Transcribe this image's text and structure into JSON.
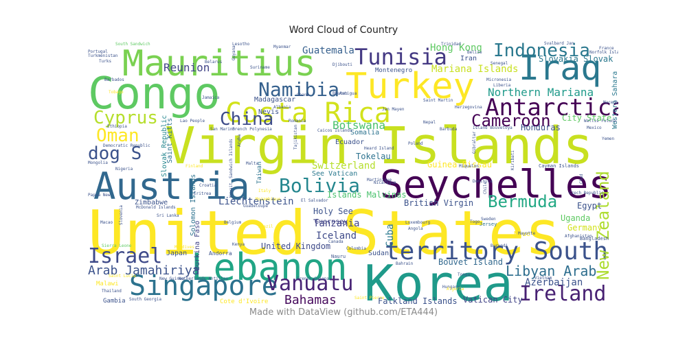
{
  "title": "Word Cloud of Country",
  "footer": "Made with DataView (github.com/ETA444)",
  "chart_data": {
    "type": "wordcloud",
    "title": "Word Cloud of Country",
    "words": [
      {
        "text": "United States",
        "weight": 1.0,
        "color": "#fde725"
      },
      {
        "text": "Virgin Islands",
        "weight": 0.92,
        "color": "#c8e020"
      },
      {
        "text": "Korea",
        "weight": 0.85,
        "color": "#1f9a8a"
      },
      {
        "text": "Congo",
        "weight": 0.8,
        "color": "#5ec962"
      },
      {
        "text": "Lebanon",
        "weight": 0.74,
        "color": "#21a585"
      },
      {
        "text": "Seychelles",
        "weight": 0.72,
        "color": "#440154"
      },
      {
        "text": "Austria",
        "weight": 0.66,
        "color": "#31688e"
      },
      {
        "text": "Mauritius",
        "weight": 0.64,
        "color": "#7ad151"
      },
      {
        "text": "Turkey",
        "weight": 0.62,
        "color": "#fde725"
      },
      {
        "text": "Iraq",
        "weight": 0.58,
        "color": "#2a788e"
      },
      {
        "text": "Costa Rica",
        "weight": 0.55,
        "color": "#d2e21b"
      },
      {
        "text": "Singapore",
        "weight": 0.47,
        "color": "#2c728e"
      },
      {
        "text": "territory South",
        "weight": 0.45,
        "color": "#3b528b"
      },
      {
        "text": "Antarctica",
        "weight": 0.42,
        "color": "#440154"
      },
      {
        "text": "Tunisia",
        "weight": 0.38,
        "color": "#443983"
      },
      {
        "text": "Namibia",
        "weight": 0.36,
        "color": "#35608d"
      },
      {
        "text": "Indonesia",
        "weight": 0.35,
        "color": "#2a788e"
      },
      {
        "text": "Vanuatu",
        "weight": 0.35,
        "color": "#482475"
      },
      {
        "text": "Israel",
        "weight": 0.35,
        "color": "#3e4a89"
      },
      {
        "text": "Ireland",
        "weight": 0.33,
        "color": "#482173"
      },
      {
        "text": "Bolivia",
        "weight": 0.32,
        "color": "#24868e"
      },
      {
        "text": "Cyprus",
        "weight": 0.3,
        "color": "#b5de2b"
      },
      {
        "text": "China",
        "weight": 0.3,
        "color": "#3e4c8a"
      },
      {
        "text": "Oman",
        "weight": 0.3,
        "color": "#fde725"
      },
      {
        "text": "Cameroon",
        "weight": 0.28,
        "color": "#440154"
      },
      {
        "text": "Bermuda",
        "weight": 0.28,
        "color": "#22a884"
      },
      {
        "text": "dog S",
        "weight": 0.28,
        "color": "#3b528b"
      },
      {
        "text": "New Zealand",
        "weight": 0.27,
        "color": "#addc30"
      },
      {
        "text": "Libyan Arab",
        "weight": 0.22,
        "color": "#2e6e8e"
      },
      {
        "text": "Arab Jamahiriya",
        "weight": 0.22,
        "color": "#3b528b"
      },
      {
        "text": "Bahamas",
        "weight": 0.2,
        "color": "#460a5d"
      },
      {
        "text": "Reunion",
        "weight": 0.18,
        "color": "#414487"
      },
      {
        "text": "Guatemala",
        "weight": 0.16,
        "color": "#355f8d"
      },
      {
        "text": "Hong Kong",
        "weight": 0.16,
        "color": "#5ec962"
      },
      {
        "text": "Mariana Islands",
        "weight": 0.16,
        "color": "#c8e020"
      },
      {
        "text": "Northern Mariana",
        "weight": 0.18,
        "color": "#1f9a8a"
      },
      {
        "text": "Slovakia Slovak",
        "weight": 0.14,
        "color": "#2a788e"
      },
      {
        "text": "Botswana",
        "weight": 0.16,
        "color": "#4ac16d"
      },
      {
        "text": "Switzerland",
        "weight": 0.15,
        "color": "#b5de2b"
      },
      {
        "text": "Liechtenstein",
        "weight": 0.14,
        "color": "#3b528b"
      },
      {
        "text": "Tanzania",
        "weight": 0.14,
        "color": "#414487"
      },
      {
        "text": "Azerbaijan",
        "weight": 0.14,
        "color": "#3b528b"
      },
      {
        "text": "Iceland",
        "weight": 0.13,
        "color": "#3e4a89"
      },
      {
        "text": "Tokelau",
        "weight": 0.12,
        "color": "#2c728e"
      },
      {
        "text": "Honduras",
        "weight": 0.12,
        "color": "#3b528b"
      },
      {
        "text": "Uganda",
        "weight": 0.12,
        "color": "#5ec962"
      },
      {
        "text": "Germany",
        "weight": 0.12,
        "color": "#d2e21b"
      },
      {
        "text": "Egypt",
        "weight": 0.12,
        "color": "#3b528b"
      },
      {
        "text": "Cuba",
        "weight": 0.13,
        "color": "#2a788e"
      },
      {
        "text": "United Kingdom",
        "weight": 0.11,
        "color": "#3e4a89"
      },
      {
        "text": "Bouvet Island",
        "weight": 0.11,
        "color": "#31688e"
      },
      {
        "text": "Falkland Islands",
        "weight": 0.1,
        "color": "#3b528b"
      },
      {
        "text": "Vatican City",
        "weight": 0.1,
        "color": "#414487"
      },
      {
        "text": "Guinea Bissau",
        "weight": 0.1,
        "color": "#fde725"
      },
      {
        "text": "Islands Malvinas",
        "weight": 0.11,
        "color": "#4ac16d"
      },
      {
        "text": "British Virgin",
        "weight": 0.11,
        "color": "#3b528b"
      },
      {
        "text": "Holy See",
        "weight": 0.11,
        "color": "#3b528b"
      },
      {
        "text": "Guernsey",
        "weight": 0.09,
        "color": "#414487"
      },
      {
        "text": "Ecuador",
        "weight": 0.1,
        "color": "#3b528b"
      },
      {
        "text": "Somalia",
        "weight": 0.1,
        "color": "#2c728e"
      },
      {
        "text": "See Vatican",
        "weight": 0.1,
        "color": "#2a788e"
      },
      {
        "text": "Saint Kitts",
        "weight": 0.1,
        "color": "#2c728e"
      },
      {
        "text": "Slovak Republic",
        "weight": 0.1,
        "color": "#24868e"
      },
      {
        "text": "Western Sahara",
        "weight": 0.1,
        "color": "#2a788e"
      },
      {
        "text": "City State",
        "weight": 0.1,
        "color": "#5ec962"
      },
      {
        "text": "Madagascar",
        "weight": 0.1,
        "color": "#3b528b"
      },
      {
        "text": "Nevis",
        "weight": 0.1,
        "color": "#3b528b"
      },
      {
        "text": "Sudan",
        "weight": 0.09,
        "color": "#3b528b"
      },
      {
        "text": "Niue",
        "weight": 0.09,
        "color": "#fde725"
      },
      {
        "text": "Japan",
        "weight": 0.09,
        "color": "#3b528b"
      },
      {
        "text": "Zimbabwe",
        "weight": 0.09,
        "color": "#3b528b"
      },
      {
        "text": "Solomon Islands",
        "weight": 0.09,
        "color": "#2c728e"
      },
      {
        "text": "Burkina Faso",
        "weight": 0.09,
        "color": "#414487"
      },
      {
        "text": "Gambia",
        "weight": 0.09,
        "color": "#3b528b"
      },
      {
        "text": "Malawi",
        "weight": 0.09,
        "color": "#fde725"
      },
      {
        "text": "Cote d'Ivoire",
        "weight": 0.09,
        "color": "#fde725"
      },
      {
        "text": "Iran",
        "weight": 0.09,
        "color": "#3b528b"
      },
      {
        "text": "Montenegro",
        "weight": 0.08,
        "color": "#3b528b"
      },
      {
        "text": "Taiwan",
        "weight": 0.08,
        "color": "#2c728e"
      },
      {
        "text": "Andorra",
        "weight": 0.07,
        "color": "#3b528b"
      },
      {
        "text": "Nauru",
        "weight": 0.06,
        "color": "#3b528b"
      },
      {
        "text": "Bangladesh",
        "weight": 0.06,
        "color": "#3b528b"
      },
      {
        "text": "Jersey",
        "weight": 0.06,
        "color": "#2c728e"
      },
      {
        "text": "Croatia",
        "weight": 0.05,
        "color": "#3b528b"
      },
      {
        "text": "Mongolia",
        "weight": 0.05,
        "color": "#3b528b"
      },
      {
        "text": "Turkmenistan",
        "weight": 0.05,
        "color": "#3b528b"
      },
      {
        "text": "Portugal",
        "weight": 0.05,
        "color": "#3b528b"
      },
      {
        "text": "Lesotho",
        "weight": 0.05,
        "color": "#3b528b"
      },
      {
        "text": "Myanmar",
        "weight": 0.05,
        "color": "#3b528b"
      },
      {
        "text": "Belarus",
        "weight": 0.05,
        "color": "#3b528b"
      },
      {
        "text": "Djibouti",
        "weight": 0.05,
        "color": "#3b528b"
      },
      {
        "text": "Bhutan",
        "weight": 0.05,
        "color": "#3b528b"
      },
      {
        "text": "Ghana",
        "weight": 0.05,
        "color": "#3b528b"
      },
      {
        "text": "Albania",
        "weight": 0.05,
        "color": "#3b528b"
      },
      {
        "text": "Barbados",
        "weight": 0.05,
        "color": "#3b528b"
      },
      {
        "text": "Tobago",
        "weight": 0.05,
        "color": "#fde725"
      },
      {
        "text": "Ethiopia",
        "weight": 0.05,
        "color": "#3b528b"
      },
      {
        "text": "Finland",
        "weight": 0.05,
        "color": "#fde725"
      },
      {
        "text": "Italy",
        "weight": 0.05,
        "color": "#fde725"
      },
      {
        "text": "Nigeria",
        "weight": 0.05,
        "color": "#3b528b"
      },
      {
        "text": "Thailand",
        "weight": 0.05,
        "color": "#3b528b"
      },
      {
        "text": "Macao",
        "weight": 0.05,
        "color": "#3b528b"
      },
      {
        "text": "Brazil",
        "weight": 0.05,
        "color": "#fde725"
      },
      {
        "text": "Luxembourg",
        "weight": 0.05,
        "color": "#3b528b"
      },
      {
        "text": "Sweden",
        "weight": 0.05,
        "color": "#3b528b"
      },
      {
        "text": "Togo",
        "weight": 0.05,
        "color": "#3b528b"
      },
      {
        "text": "Angola",
        "weight": 0.05,
        "color": "#3b528b"
      },
      {
        "text": "Hungary",
        "weight": 0.05,
        "color": "#3b528b"
      },
      {
        "text": "Canada",
        "weight": 0.05,
        "color": "#3b528b"
      },
      {
        "text": "Colombia",
        "weight": 0.05,
        "color": "#3b528b"
      },
      {
        "text": "Poland",
        "weight": 0.05,
        "color": "#3b528b"
      },
      {
        "text": "Nepal",
        "weight": 0.05,
        "color": "#3b528b"
      },
      {
        "text": "Barbuda",
        "weight": 0.05,
        "color": "#3b528b"
      },
      {
        "text": "Antigua",
        "weight": 0.05,
        "color": "#3b528b"
      },
      {
        "text": "Belize",
        "weight": 0.05,
        "color": "#3b528b"
      },
      {
        "text": "Trinidad",
        "weight": 0.05,
        "color": "#3b528b"
      },
      {
        "text": "Micronesia",
        "weight": 0.05,
        "color": "#3b528b"
      },
      {
        "text": "Kiribati",
        "weight": 0.05,
        "color": "#3b528b"
      },
      {
        "text": "Gibraltar",
        "weight": 0.05,
        "color": "#3b528b"
      },
      {
        "text": "Mexico",
        "weight": 0.05,
        "color": "#3b528b"
      },
      {
        "text": "Yemen",
        "weight": 0.05,
        "color": "#3b528b"
      },
      {
        "text": "France",
        "weight": 0.05,
        "color": "#3b528b"
      },
      {
        "text": "Heard Island",
        "weight": 0.05,
        "color": "#3b528b"
      },
      {
        "text": "Mozambique",
        "weight": 0.04,
        "color": "#fde725"
      },
      {
        "text": "Vietnam",
        "weight": 0.04,
        "color": "#3b528b"
      },
      {
        "text": "Tonga",
        "weight": 0.04,
        "color": "#3b528b"
      },
      {
        "text": "Sierra Leone",
        "weight": 0.04,
        "color": "#5ec962"
      },
      {
        "text": "Saint Lucia",
        "weight": 0.04,
        "color": "#fde725"
      },
      {
        "text": "South Georgia",
        "weight": 0.04,
        "color": "#3b528b"
      },
      {
        "text": "Saint Pierre",
        "weight": 0.04,
        "color": "#fde725"
      },
      {
        "text": "Netherlands Antilles",
        "weight": 0.04,
        "color": "#3b528b"
      },
      {
        "text": "French Guiana",
        "weight": 0.04,
        "color": "#3b528b"
      },
      {
        "text": "New Guinea",
        "weight": 0.04,
        "color": "#3b528b"
      },
      {
        "text": "Sri Lanka",
        "weight": 0.04,
        "color": "#3b528b"
      },
      {
        "text": "Guyana",
        "weight": 0.04,
        "color": "#3b528b"
      },
      {
        "text": "San Marino",
        "weight": 0.04,
        "color": "#3b528b"
      },
      {
        "text": "Saint Martin",
        "weight": 0.04,
        "color": "#3b528b"
      },
      {
        "text": "Senegal",
        "weight": 0.04,
        "color": "#3b528b"
      },
      {
        "text": "Liberia",
        "weight": 0.04,
        "color": "#3b528b"
      },
      {
        "text": "Macedonia",
        "weight": 0.04,
        "color": "#3b528b"
      },
      {
        "text": "Algeria",
        "weight": 0.04,
        "color": "#fde725"
      },
      {
        "text": "Chile",
        "weight": 0.04,
        "color": "#3b528b"
      },
      {
        "text": "Kuwait",
        "weight": 0.04,
        "color": "#3b528b"
      },
      {
        "text": "Papua New",
        "weight": 0.04,
        "color": "#3b528b"
      },
      {
        "text": "Turks",
        "weight": 0.04,
        "color": "#3b528b"
      },
      {
        "text": "South Sandwich",
        "weight": 0.04,
        "color": "#5ec962"
      },
      {
        "text": "Svalbard Jan",
        "weight": 0.04,
        "color": "#3b528b"
      },
      {
        "text": "Norfolk Island",
        "weight": 0.04,
        "color": "#3b528b"
      },
      {
        "text": "Czech Republic",
        "weight": 0.04,
        "color": "#3b528b"
      },
      {
        "text": "Afghanistan",
        "weight": 0.04,
        "color": "#3b528b"
      },
      {
        "text": "Burundi",
        "weight": 0.04,
        "color": "#3b528b"
      },
      {
        "text": "Bahrain",
        "weight": 0.04,
        "color": "#3b528b"
      },
      {
        "text": "Romania",
        "weight": 0.04,
        "color": "#3b528b"
      },
      {
        "text": "Tajikistan",
        "weight": 0.04,
        "color": "#3b528b"
      },
      {
        "text": "Caicos Islands",
        "weight": 0.04,
        "color": "#3b528b"
      },
      {
        "text": "Sandwich Islands",
        "weight": 0.04,
        "color": "#3b528b"
      },
      {
        "text": "Island Bouvetoya",
        "weight": 0.04,
        "color": "#3b528b"
      },
      {
        "text": "Miquelon",
        "weight": 0.04,
        "color": "#3b528b"
      },
      {
        "text": "Kenya",
        "weight": 0.04,
        "color": "#3b528b"
      },
      {
        "text": "Slovenia",
        "weight": 0.04,
        "color": "#3b528b"
      },
      {
        "text": "Jamaica",
        "weight": 0.04,
        "color": "#3b528b"
      },
      {
        "text": "Aruba",
        "weight": 0.04,
        "color": "#3b528b"
      },
      {
        "text": "Lao People",
        "weight": 0.04,
        "color": "#3b528b"
      },
      {
        "text": "Malta",
        "weight": 0.04,
        "color": "#3b528b"
      },
      {
        "text": "Belgium",
        "weight": 0.04,
        "color": "#3b528b"
      },
      {
        "text": "French Polynesia",
        "weight": 0.04,
        "color": "#3b528b"
      },
      {
        "text": "Democratic Republic",
        "weight": 0.04,
        "color": "#3b528b"
      },
      {
        "text": "Cayman Islands",
        "weight": 0.04,
        "color": "#3b528b"
      },
      {
        "text": "McDonald Islands",
        "weight": 0.04,
        "color": "#3b528b"
      },
      {
        "text": "El Salvador",
        "weight": 0.04,
        "color": "#3b528b"
      },
      {
        "text": "Eritrea",
        "weight": 0.04,
        "color": "#3b528b"
      },
      {
        "text": "Nicaragua",
        "weight": 0.04,
        "color": "#3b528b"
      },
      {
        "text": "Guadeloupe",
        "weight": 0.04,
        "color": "#3b528b"
      },
      {
        "text": "Maldives",
        "weight": 0.04,
        "color": "#fde725"
      },
      {
        "text": "Chad",
        "weight": 0.04,
        "color": "#3b528b"
      },
      {
        "text": "Herzegovina",
        "weight": 0.04,
        "color": "#3b528b"
      },
      {
        "text": "Jan Mayen",
        "weight": 0.04,
        "color": "#3b528b"
      },
      {
        "text": "Suriname",
        "weight": 0.04,
        "color": "#3b528b"
      },
      {
        "text": "Martinique",
        "weight": 0.04,
        "color": "#3b528b"
      },
      {
        "text": "Mayotte",
        "weight": 0.04,
        "color": "#3b528b"
      },
      {
        "text": "Wallis Futuna",
        "weight": 0.04,
        "color": "#3b528b"
      },
      {
        "text": "Dominica",
        "weight": 0.04,
        "color": "#3b528b"
      }
    ]
  }
}
